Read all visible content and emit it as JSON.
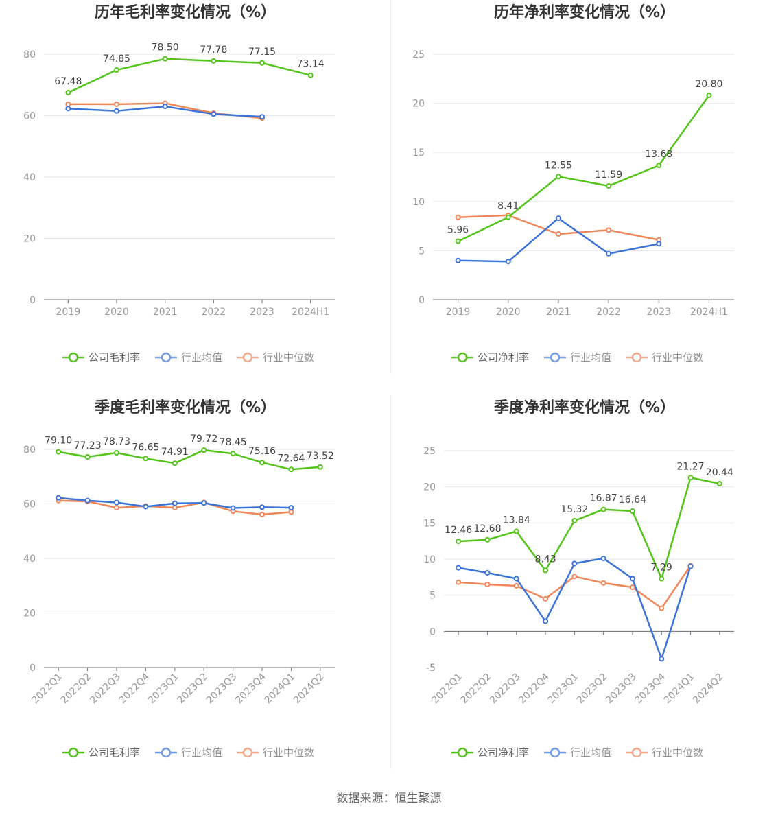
{
  "source": "数据来源：恒生聚源",
  "legend_names": {
    "gross": [
      "公司毛利率",
      "行业均值",
      "行业中位数"
    ],
    "net": [
      "公司净利率",
      "行业均值",
      "行业中位数"
    ]
  },
  "colors": {
    "company": "#52c41a",
    "avg": "#3b73d9",
    "median": "#f0875a"
  },
  "chart_data": [
    {
      "id": "annual-gross",
      "type": "line",
      "title": "历年毛利率变化情况（%）",
      "categories": [
        "2019",
        "2020",
        "2021",
        "2022",
        "2023",
        "2024H1"
      ],
      "ylim": [
        0,
        80
      ],
      "yticks": [
        0,
        20,
        40,
        60,
        80
      ],
      "grid": true,
      "legend": "bottom",
      "series": [
        {
          "name": "公司毛利率",
          "values": [
            67.48,
            74.85,
            78.5,
            77.78,
            77.15,
            73.14
          ],
          "labels": [
            "67.48",
            "74.85",
            "78.50",
            "77.78",
            "77.15",
            "73.14"
          ]
        },
        {
          "name": "行业均值",
          "values": [
            62.3,
            61.5,
            63.0,
            60.5,
            59.6,
            null
          ]
        },
        {
          "name": "行业中位数",
          "values": [
            63.7,
            63.7,
            64.0,
            60.8,
            59.2,
            null
          ]
        }
      ]
    },
    {
      "id": "annual-net",
      "type": "line",
      "title": "历年净利率变化情况（%）",
      "categories": [
        "2019",
        "2020",
        "2021",
        "2022",
        "2023",
        "2024H1"
      ],
      "ylim": [
        0,
        25
      ],
      "yticks": [
        0,
        5,
        10,
        15,
        20,
        25
      ],
      "grid": true,
      "legend": "bottom",
      "series": [
        {
          "name": "公司净利率",
          "values": [
            5.96,
            8.41,
            12.55,
            11.59,
            13.68,
            20.8
          ],
          "labels": [
            "5.96",
            "8.41",
            "12.55",
            "11.59",
            "13.68",
            "20.80"
          ]
        },
        {
          "name": "行业均值",
          "values": [
            4.0,
            3.9,
            8.3,
            4.7,
            5.7,
            null
          ]
        },
        {
          "name": "行业中位数",
          "values": [
            8.4,
            8.6,
            6.7,
            7.1,
            6.1,
            null
          ]
        }
      ]
    },
    {
      "id": "quarterly-gross",
      "type": "line",
      "title": "季度毛利率变化情况（%）",
      "categories": [
        "2022Q1",
        "2022Q2",
        "2022Q3",
        "2022Q4",
        "2023Q1",
        "2023Q2",
        "2023Q3",
        "2023Q4",
        "2024Q1",
        "2024Q2"
      ],
      "ylim": [
        0,
        80
      ],
      "yticks": [
        0,
        20,
        40,
        60,
        80
      ],
      "grid": true,
      "legend": "bottom",
      "series": [
        {
          "name": "公司毛利率",
          "values": [
            79.1,
            77.23,
            78.73,
            76.65,
            74.91,
            79.72,
            78.45,
            75.16,
            72.64,
            73.52
          ],
          "labels": [
            "79.10",
            "77.23",
            "78.73",
            "76.65",
            "74.91",
            "79.72",
            "78.45",
            "75.16",
            "72.64",
            "73.52"
          ]
        },
        {
          "name": "行业均值",
          "values": [
            62.2,
            61.2,
            60.5,
            59.0,
            60.2,
            60.3,
            58.5,
            58.8,
            58.6,
            null
          ]
        },
        {
          "name": "行业中位数",
          "values": [
            61.2,
            60.9,
            58.6,
            59.2,
            58.6,
            60.5,
            57.3,
            56.1,
            57.0,
            null
          ]
        }
      ]
    },
    {
      "id": "quarterly-net",
      "type": "line",
      "title": "季度净利率变化情况（%）",
      "categories": [
        "2022Q1",
        "2022Q2",
        "2022Q3",
        "2022Q4",
        "2023Q1",
        "2023Q2",
        "2023Q3",
        "2023Q4",
        "2024Q1",
        "2024Q2"
      ],
      "ylim": [
        -5,
        25
      ],
      "yticks": [
        -5,
        0,
        5,
        10,
        15,
        20,
        25
      ],
      "grid": true,
      "legend": "bottom",
      "series": [
        {
          "name": "公司净利率",
          "values": [
            12.46,
            12.68,
            13.84,
            8.43,
            15.32,
            16.87,
            16.64,
            7.29,
            21.27,
            20.44
          ],
          "labels": [
            "12.46",
            "12.68",
            "13.84",
            "8.43",
            "15.32",
            "16.87",
            "16.64",
            "7.29",
            "21.27",
            "20.44"
          ]
        },
        {
          "name": "行业均值",
          "values": [
            8.8,
            8.1,
            7.3,
            1.4,
            9.4,
            10.1,
            7.3,
            -3.8,
            9.0,
            null
          ]
        },
        {
          "name": "行业中位数",
          "values": [
            6.8,
            6.5,
            6.3,
            4.5,
            7.6,
            6.7,
            6.1,
            3.2,
            9.1,
            null
          ]
        }
      ]
    }
  ]
}
